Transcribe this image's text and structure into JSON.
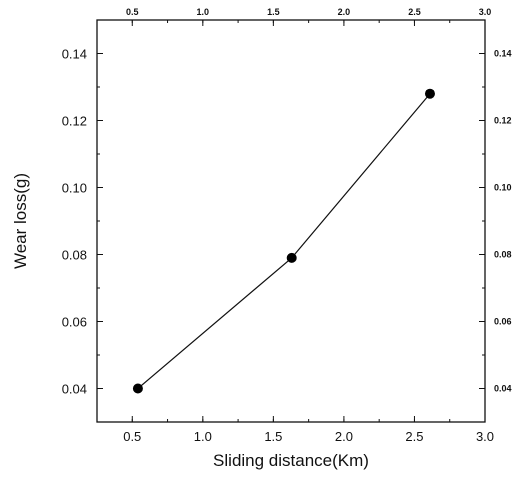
{
  "chart_data": {
    "type": "line",
    "title": "",
    "xlabel": "Sliding distance(Km)",
    "ylabel": "Wear loss(g)",
    "xlim": [
      0.25,
      3.0
    ],
    "ylim": [
      0.03,
      0.15
    ],
    "x_ticks": [
      "0.5",
      "1.0",
      "1.5",
      "2.0",
      "2.5",
      "3.0"
    ],
    "x_tick_values": [
      0.5,
      1.0,
      1.5,
      2.0,
      2.5,
      3.0
    ],
    "y_ticks": [
      "0.04",
      "0.06",
      "0.08",
      "0.10",
      "0.12",
      "0.14"
    ],
    "y_tick_values": [
      0.04,
      0.06,
      0.08,
      0.1,
      0.12,
      0.14
    ],
    "mirror_ticks_top_right": true,
    "grid": false,
    "legend": "none",
    "series": [
      {
        "x": [
          0.54,
          1.63,
          2.61
        ],
        "y": [
          0.04,
          0.079,
          0.128
        ]
      }
    ]
  }
}
